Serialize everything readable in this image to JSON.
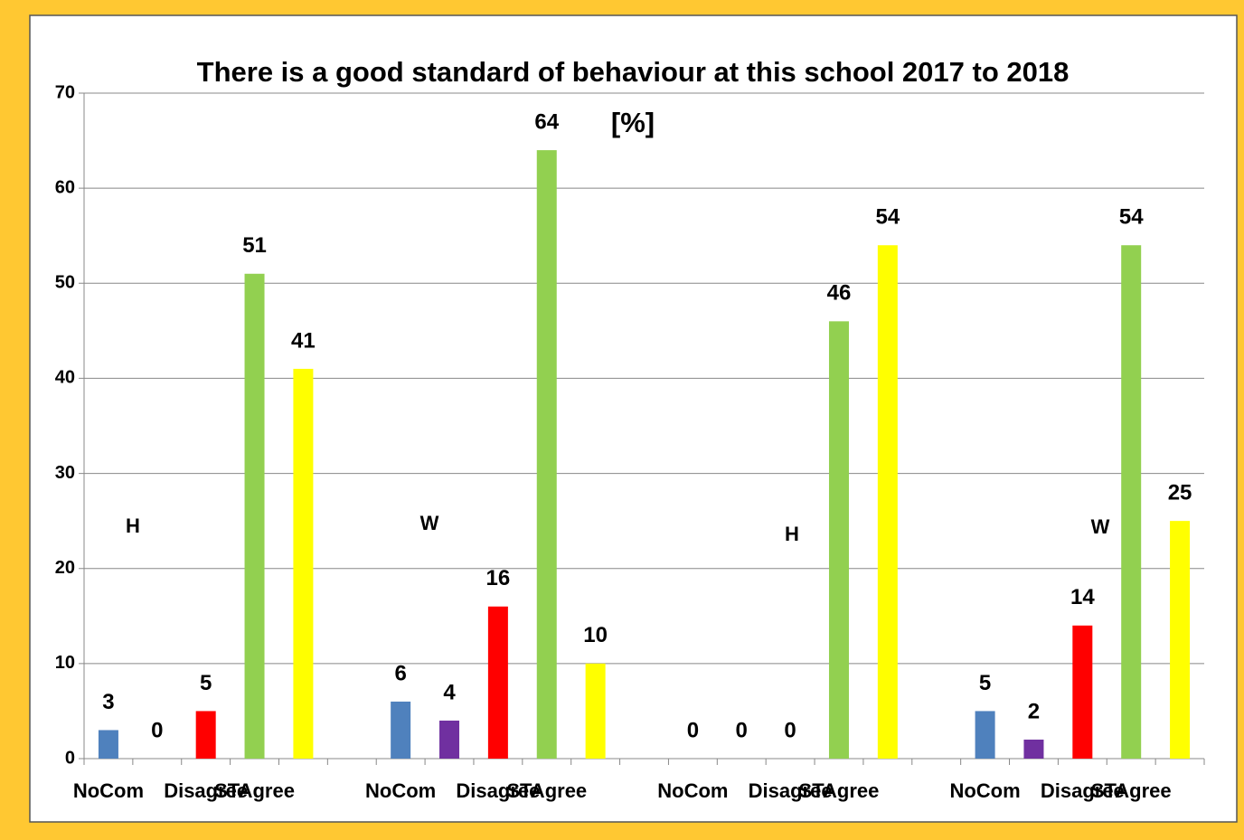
{
  "chart_data": {
    "type": "bar",
    "title": "There is a good standard of behaviour at this school  2017 to 2018  [%]",
    "categories": [
      "NoCom",
      null,
      "Disagree",
      "STAgree",
      null,
      null,
      "NoCom",
      null,
      "Disagree",
      "STAgree",
      null,
      null,
      "NoCom",
      null,
      "Disagree",
      "STAgree",
      null,
      null,
      "NoCom",
      null,
      "Disagree",
      "STAgree",
      null
    ],
    "values": [
      3,
      0,
      5,
      51,
      41,
      null,
      6,
      4,
      16,
      64,
      10,
      null,
      0,
      0,
      0,
      46,
      54,
      null,
      5,
      2,
      14,
      54,
      25
    ],
    "colors": [
      "#4f81bd",
      "#7030a0",
      "#ff0000",
      "#92d050",
      "#ffff00",
      null,
      "#4f81bd",
      "#7030a0",
      "#ff0000",
      "#92d050",
      "#ffff00",
      null,
      "#4f81bd",
      "#7030a0",
      "#ff0000",
      "#92d050",
      "#ffff00",
      null,
      "#4f81bd",
      "#7030a0",
      "#ff0000",
      "#92d050",
      "#ffff00"
    ],
    "annotations": [
      "H",
      "W",
      "H",
      "W"
    ],
    "ylim": [
      0,
      70
    ],
    "yticks": [
      0,
      10,
      20,
      30,
      40,
      50,
      60,
      70
    ],
    "grid": true
  }
}
